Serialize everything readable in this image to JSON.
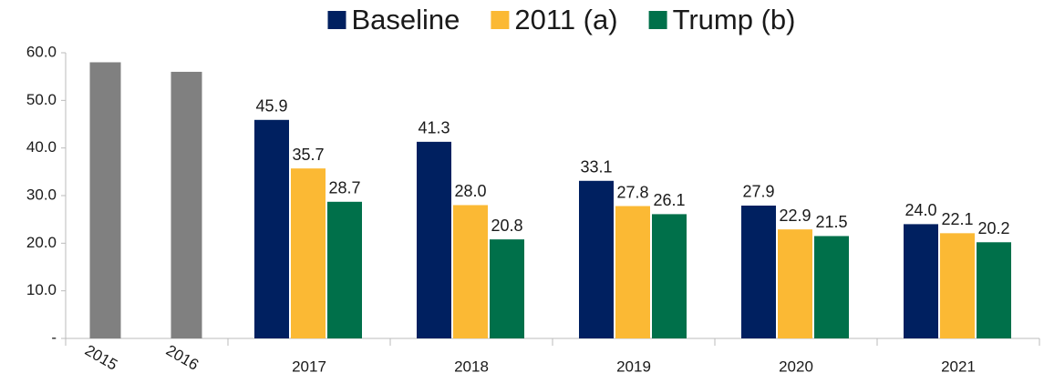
{
  "chart_data": {
    "type": "bar",
    "categories": [
      "2015",
      "2016",
      "2017",
      "2018",
      "2019",
      "2020",
      "2021"
    ],
    "series": [
      {
        "color": "#808080",
        "values": [
          58,
          56,
          null,
          null,
          null,
          null,
          null
        ]
      },
      {
        "name": "Baseline",
        "color": "#002060",
        "values": [
          null,
          null,
          45.9,
          41.3,
          33.1,
          27.9,
          24.0
        ],
        "value_labels": [
          null,
          null,
          "45.9",
          "41.3",
          "33.1",
          "27.9",
          "24.0"
        ]
      },
      {
        "name": "2011 (a)",
        "color": "#FBB934",
        "values": [
          null,
          null,
          35.7,
          28.0,
          27.8,
          22.9,
          22.1
        ],
        "value_labels": [
          null,
          null,
          "35.7",
          "28.0",
          "27.8",
          "22.9",
          "22.1"
        ]
      },
      {
        "name": "Trump (b)",
        "color": "#00704A",
        "values": [
          null,
          null,
          28.7,
          20.8,
          26.1,
          21.5,
          20.2
        ],
        "value_labels": [
          null,
          null,
          "28.7",
          "20.8",
          "26.1",
          "21.5",
          "20.2"
        ]
      }
    ],
    "ylim": [
      0,
      60
    ],
    "yticks": [
      {
        "value": 0,
        "label": "-"
      },
      {
        "value": 10,
        "label": "10.0"
      },
      {
        "value": 20,
        "label": "20.0"
      },
      {
        "value": 30,
        "label": "30.0"
      },
      {
        "value": 40,
        "label": "40.0"
      },
      {
        "value": 50,
        "label": "50.0"
      },
      {
        "value": 60,
        "label": "60.0"
      }
    ],
    "legend": "top"
  }
}
